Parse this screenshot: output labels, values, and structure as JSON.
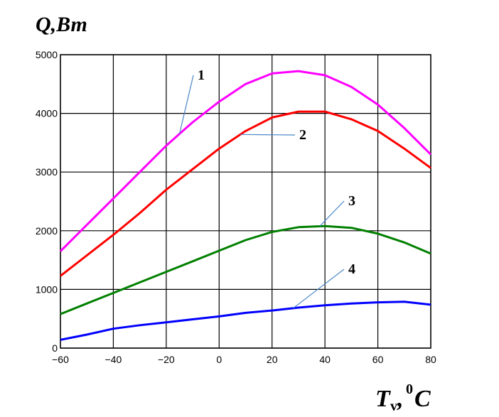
{
  "chart_data": {
    "type": "line",
    "ylabel": "Q,Вт",
    "xlabel_main": "T",
    "xlabel_sub": "v",
    "xlabel_sep": ",",
    "xlabel_sup": "0",
    "xlabel_unit": "C",
    "xlim": [
      -60,
      80
    ],
    "ylim": [
      0,
      5000
    ],
    "xticks": [
      -60,
      -40,
      -20,
      0,
      20,
      40,
      60,
      80
    ],
    "yticks": [
      0,
      1000,
      2000,
      3000,
      4000,
      5000
    ],
    "grid": true,
    "series": [
      {
        "name": "1",
        "color": "#ff00ff",
        "x": [
          -60,
          -50,
          -40,
          -30,
          -20,
          -10,
          0,
          10,
          20,
          30,
          40,
          50,
          60,
          70,
          80
        ],
        "y": [
          1650,
          2100,
          2550,
          3000,
          3450,
          3850,
          4200,
          4500,
          4680,
          4720,
          4650,
          4450,
          4150,
          3750,
          3300
        ]
      },
      {
        "name": "2",
        "color": "#ff0000",
        "x": [
          -60,
          -50,
          -40,
          -30,
          -20,
          -10,
          0,
          10,
          20,
          30,
          40,
          50,
          60,
          70,
          80
        ],
        "y": [
          1230,
          1580,
          1930,
          2300,
          2700,
          3050,
          3400,
          3700,
          3930,
          4030,
          4030,
          3900,
          3700,
          3400,
          3070
        ]
      },
      {
        "name": "3",
        "color": "#008000",
        "x": [
          -60,
          -50,
          -40,
          -30,
          -20,
          -10,
          0,
          10,
          20,
          30,
          40,
          50,
          60,
          70,
          80
        ],
        "y": [
          580,
          760,
          940,
          1120,
          1300,
          1480,
          1660,
          1840,
          1980,
          2060,
          2080,
          2050,
          1950,
          1800,
          1610
        ]
      },
      {
        "name": "4",
        "color": "#0000ff",
        "x": [
          -60,
          -50,
          -40,
          -30,
          -20,
          -10,
          0,
          10,
          20,
          30,
          40,
          50,
          60,
          70,
          80
        ],
        "y": [
          140,
          230,
          330,
          390,
          440,
          490,
          540,
          600,
          640,
          690,
          730,
          760,
          780,
          790,
          740
        ]
      }
    ],
    "annotations": [
      {
        "label": "1",
        "series": 0,
        "at_x": -15
      },
      {
        "label": "2",
        "series": 1,
        "at_x": 8
      },
      {
        "label": "3",
        "series": 2,
        "at_x": 38
      },
      {
        "label": "4",
        "series": 3,
        "at_x": 28
      }
    ]
  }
}
